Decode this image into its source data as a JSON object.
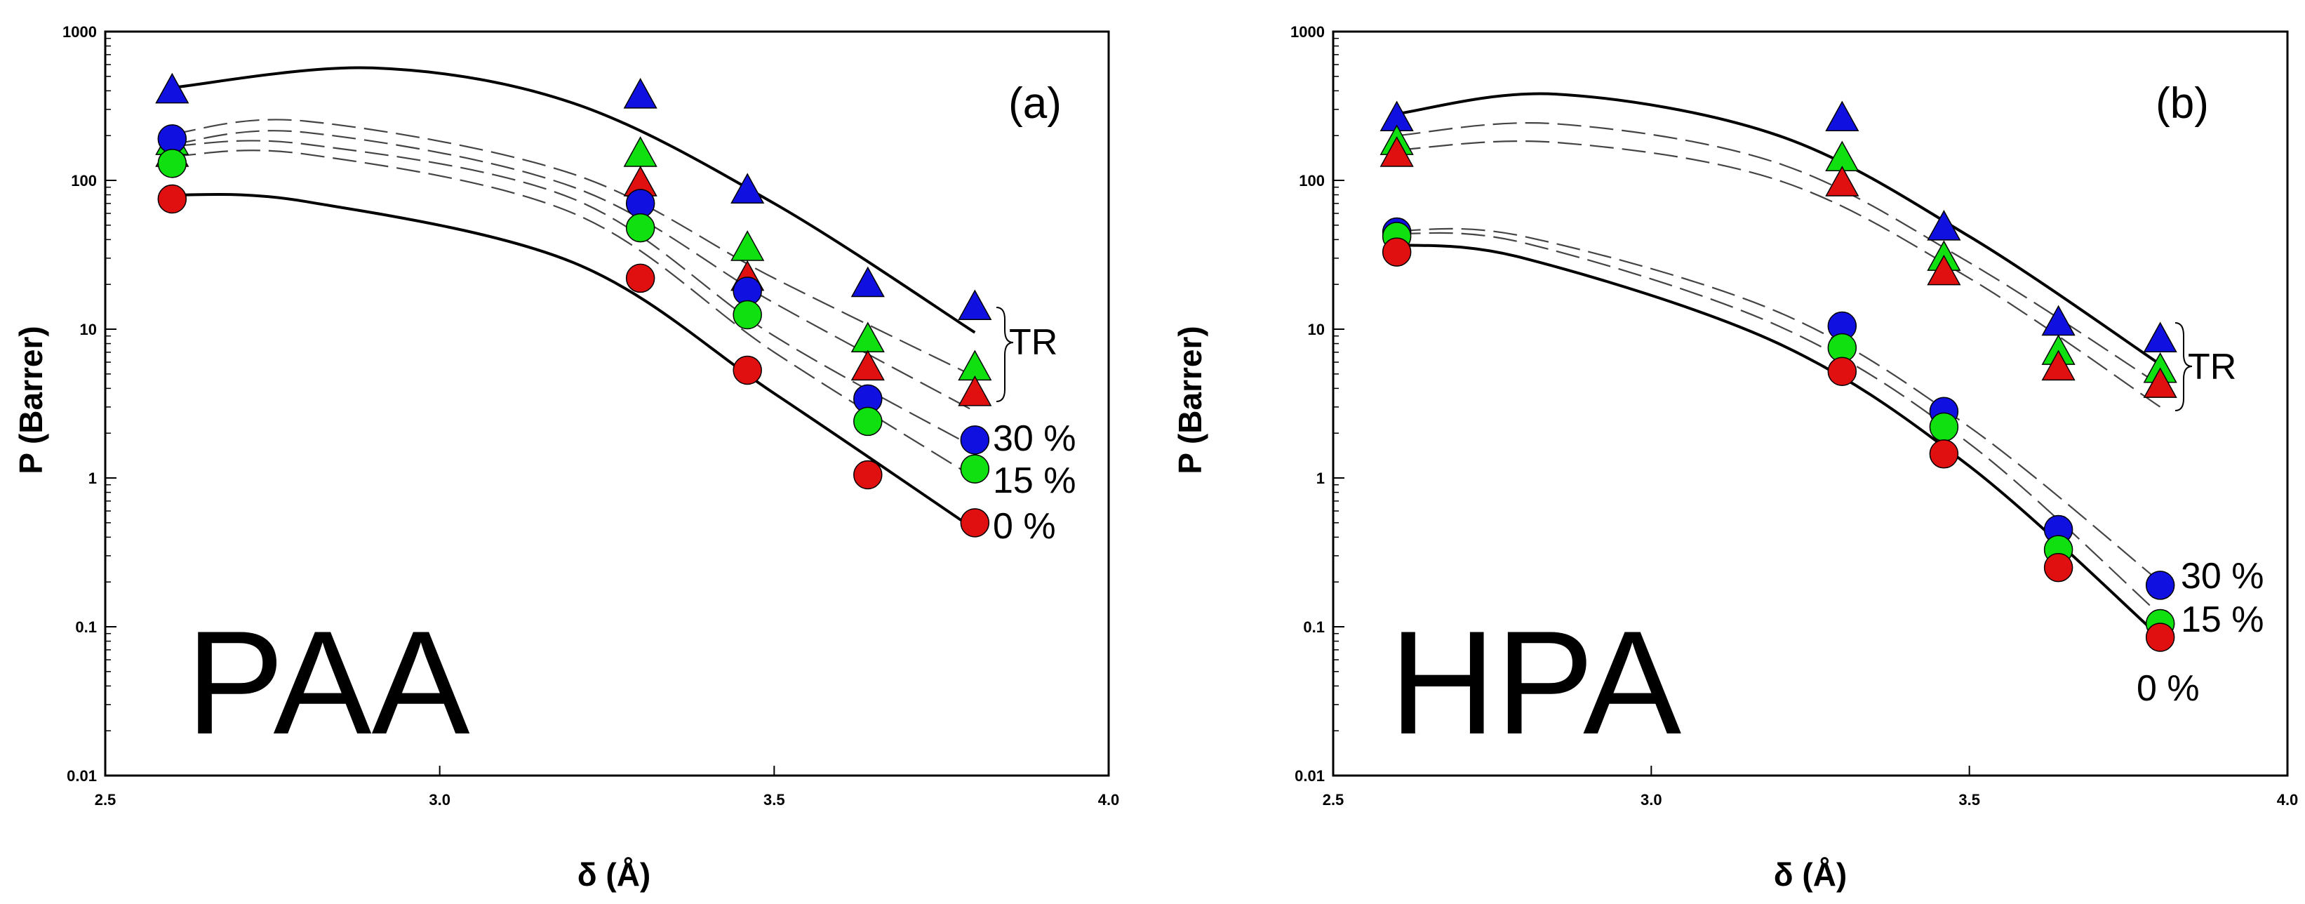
{
  "chart_data": [
    {
      "type": "scatter",
      "panel_label": "(a)",
      "polymer_label": "PAA",
      "xlabel": "δ (Å)",
      "ylabel": "P (Barrer)",
      "xlim": [
        2.5,
        4.0
      ],
      "ylim": [
        0.01,
        1000
      ],
      "ylog": true,
      "xticks": [
        "2.5",
        "3.0",
        "3.5",
        "4.0"
      ],
      "yticks": [
        "0.01",
        "0.1",
        "1",
        "10",
        "100",
        "1000"
      ],
      "annotations": {
        "tr": "TR",
        "p30": "30 %",
        "p15": "15 %",
        "p0": "0 %"
      },
      "series": [
        {
          "name": "TR 30 %",
          "marker": "triangle",
          "color": "#1010e0",
          "x": [
            2.6,
            3.3,
            3.46,
            3.64,
            3.8
          ],
          "y": [
            400,
            370,
            85,
            20,
            14
          ]
        },
        {
          "name": "TR 15 %",
          "marker": "triangle",
          "color": "#10e010",
          "x": [
            2.6,
            3.3,
            3.46,
            3.64,
            3.8
          ],
          "y": [
            180,
            150,
            35,
            8.5,
            5.5
          ]
        },
        {
          "name": "TR 0 %",
          "marker": "triangle",
          "color": "#e01010",
          "x": [
            2.6,
            3.3,
            3.46,
            3.64,
            3.8
          ],
          "y": [
            150,
            95,
            22,
            5.5,
            3.7
          ]
        },
        {
          "name": "30 %",
          "marker": "circle",
          "color": "#1010e0",
          "x": [
            2.6,
            3.3,
            3.46,
            3.64,
            3.8
          ],
          "y": [
            190,
            70,
            18,
            3.4,
            1.8
          ]
        },
        {
          "name": "15 %",
          "marker": "circle",
          "color": "#10e010",
          "x": [
            2.6,
            3.3,
            3.46,
            3.64,
            3.8
          ],
          "y": [
            130,
            48,
            12.5,
            2.4,
            1.15
          ]
        },
        {
          "name": "0 %",
          "marker": "circle",
          "color": "#e01010",
          "x": [
            2.6,
            3.3,
            3.46,
            3.64,
            3.8
          ],
          "y": [
            75,
            22,
            5.3,
            1.05,
            0.5
          ]
        }
      ],
      "fits": [
        {
          "style": "solid",
          "x": [
            2.6,
            2.9,
            3.2,
            3.5,
            3.8
          ],
          "y": [
            420,
            570,
            330,
            70,
            9.5
          ]
        },
        {
          "style": "dashed",
          "x": [
            2.6,
            2.8,
            3.2,
            3.5,
            3.8
          ],
          "y": [
            205,
            250,
            110,
            22,
            4.8
          ]
        },
        {
          "style": "dashed",
          "x": [
            2.6,
            2.8,
            3.2,
            3.5,
            3.8
          ],
          "y": [
            175,
            210,
            90,
            15,
            2.8
          ]
        },
        {
          "style": "dashed",
          "x": [
            2.6,
            2.8,
            3.2,
            3.5,
            3.8
          ],
          "y": [
            170,
            175,
            75,
            9,
            1.6
          ]
        },
        {
          "style": "dashed",
          "x": [
            2.6,
            2.8,
            3.2,
            3.5,
            3.8
          ],
          "y": [
            145,
            150,
            60,
            7,
            1.0
          ]
        },
        {
          "style": "solid",
          "x": [
            2.6,
            2.8,
            3.2,
            3.5,
            3.8
          ],
          "y": [
            80,
            72,
            28,
            3.7,
            0.45
          ]
        }
      ]
    },
    {
      "type": "scatter",
      "panel_label": "(b)",
      "polymer_label": "HPA",
      "xlabel": "δ (Å)",
      "ylabel": "P (Barrer)",
      "xlim": [
        2.5,
        4.0
      ],
      "ylim": [
        0.01,
        1000
      ],
      "ylog": true,
      "xticks": [
        "2.5",
        "3.0",
        "3.5",
        "4.0"
      ],
      "yticks": [
        "0.01",
        "0.1",
        "1",
        "10",
        "100",
        "1000"
      ],
      "annotations": {
        "tr": "TR",
        "p30": "30 %",
        "p15": "15 %",
        "p0": "0 %"
      },
      "series": [
        {
          "name": "TR 30 %",
          "marker": "triangle",
          "color": "#1010e0",
          "x": [
            2.6,
            3.3,
            3.46,
            3.64,
            3.8
          ],
          "y": [
            260,
            260,
            48,
            11,
            8.5
          ]
        },
        {
          "name": "TR 15 %",
          "marker": "triangle",
          "color": "#10e010",
          "x": [
            2.6,
            3.3,
            3.46,
            3.64,
            3.8
          ],
          "y": [
            180,
            140,
            30,
            7,
            5.3
          ]
        },
        {
          "name": "TR 0 %",
          "marker": "triangle",
          "color": "#e01010",
          "x": [
            2.6,
            3.3,
            3.46,
            3.64,
            3.8
          ],
          "y": [
            150,
            95,
            24,
            5.5,
            4.2
          ]
        },
        {
          "name": "30 %",
          "marker": "circle",
          "color": "#1010e0",
          "x": [
            2.6,
            3.3,
            3.46,
            3.64,
            3.8
          ],
          "y": [
            45,
            10.5,
            2.8,
            0.45,
            0.19
          ]
        },
        {
          "name": "15 %",
          "marker": "circle",
          "color": "#10e010",
          "x": [
            2.6,
            3.3,
            3.46,
            3.64,
            3.8
          ],
          "y": [
            42,
            7.5,
            2.2,
            0.33,
            0.105
          ]
        },
        {
          "name": "0 %",
          "marker": "circle",
          "color": "#e01010",
          "x": [
            2.6,
            3.3,
            3.46,
            3.64,
            3.8
          ],
          "y": [
            33,
            5.2,
            1.45,
            0.25,
            0.085
          ]
        }
      ],
      "fits": [
        {
          "style": "solid",
          "x": [
            2.6,
            2.85,
            3.2,
            3.5,
            3.8
          ],
          "y": [
            280,
            380,
            200,
            42,
            5.8
          ]
        },
        {
          "style": "dashed",
          "x": [
            2.6,
            2.85,
            3.2,
            3.5,
            3.8
          ],
          "y": [
            200,
            240,
            130,
            28,
            4.2
          ]
        },
        {
          "style": "dashed",
          "x": [
            2.6,
            2.85,
            3.2,
            3.5,
            3.8
          ],
          "y": [
            160,
            180,
            100,
            22,
            3.0
          ]
        },
        {
          "style": "dashed",
          "x": [
            2.6,
            2.8,
            3.2,
            3.5,
            3.8
          ],
          "y": [
            46,
            42,
            13,
            2.2,
            0.2
          ]
        },
        {
          "style": "dashed",
          "x": [
            2.6,
            2.8,
            3.2,
            3.5,
            3.8
          ],
          "y": [
            44,
            38,
            10.5,
            1.7,
            0.12
          ]
        },
        {
          "style": "solid",
          "x": [
            2.6,
            2.8,
            3.2,
            3.5,
            3.8
          ],
          "y": [
            37,
            30,
            8,
            1.2,
            0.085
          ]
        }
      ]
    }
  ]
}
